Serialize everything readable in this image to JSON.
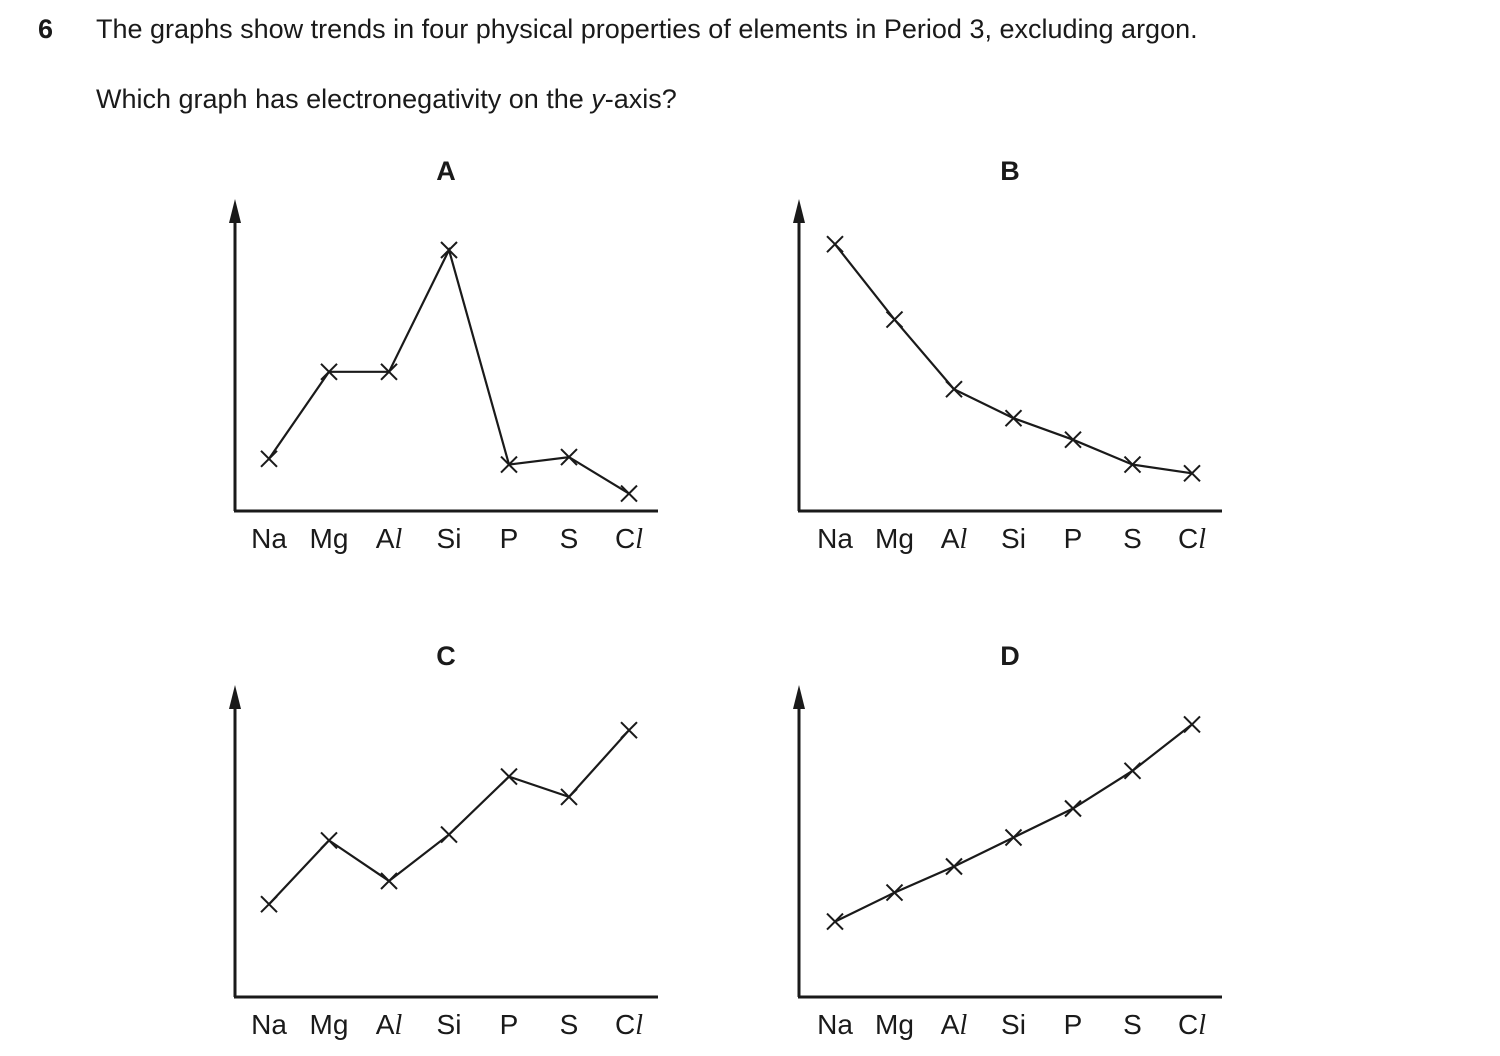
{
  "question": {
    "number": "6",
    "line1": "The graphs show trends in four physical properties of elements in Period 3, excluding argon.",
    "line2_pre": "Which graph has electronegativity on the ",
    "line2_var": "y",
    "line2_post": "-axis?"
  },
  "chart_data": [
    {
      "type": "line",
      "title": "A",
      "categories": [
        "Na",
        "Mg",
        "Al",
        "Si",
        "P",
        "S",
        "Cl"
      ],
      "values": [
        0.9,
        2.4,
        2.4,
        4.5,
        0.8,
        0.93,
        0.3
      ],
      "ylim": [
        0,
        5
      ]
    },
    {
      "type": "line",
      "title": "B",
      "categories": [
        "Na",
        "Mg",
        "Al",
        "Si",
        "P",
        "S",
        "Cl"
      ],
      "values": [
        4.6,
        3.3,
        2.1,
        1.6,
        1.23,
        0.8,
        0.65
      ],
      "ylim": [
        0,
        5
      ]
    },
    {
      "type": "line",
      "title": "C",
      "categories": [
        "Na",
        "Mg",
        "Al",
        "Si",
        "P",
        "S",
        "Cl"
      ],
      "values": [
        1.6,
        2.7,
        2.0,
        2.8,
        3.8,
        3.45,
        4.6
      ],
      "ylim": [
        0,
        5
      ]
    },
    {
      "type": "line",
      "title": "D",
      "categories": [
        "Na",
        "Mg",
        "Al",
        "Si",
        "P",
        "S",
        "Cl"
      ],
      "values": [
        1.3,
        1.8,
        2.25,
        2.75,
        3.25,
        3.9,
        4.7
      ],
      "ylim": [
        0,
        5
      ]
    }
  ]
}
